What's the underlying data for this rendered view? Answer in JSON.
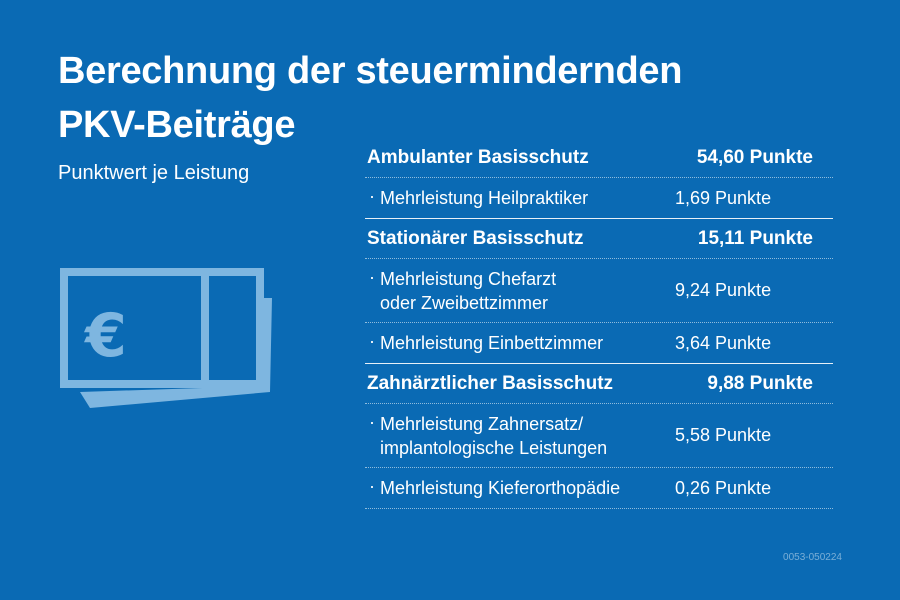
{
  "title": {
    "line1": "Berechnung der steuermindernden",
    "line2": "PKV-Beiträge"
  },
  "subtitle": "Punktwert je Leistung",
  "icon": "euro-banknote-icon",
  "colors": {
    "background": "#0a6ab4",
    "text": "#ffffff",
    "icon": "#7eb6e0"
  },
  "table": [
    {
      "type": "head",
      "label": "Ambulanter Basisschutz",
      "value": "54,60 Punkte"
    },
    {
      "type": "sub",
      "label": [
        "Mehrleistung Heilpraktiker"
      ],
      "value": "1,69 Punkte"
    },
    {
      "type": "head",
      "label": "Stationärer Basisschutz",
      "value": "15,11 Punkte"
    },
    {
      "type": "sub",
      "label": [
        "Mehrleistung Chefarzt",
        "oder Zweibettzimmer"
      ],
      "value": "9,24 Punkte"
    },
    {
      "type": "sub",
      "label": [
        "Mehrleistung Einbettzimmer"
      ],
      "value": "3,64 Punkte"
    },
    {
      "type": "head",
      "label": "Zahnärztlicher Basisschutz",
      "value": "9,88 Punkte"
    },
    {
      "type": "sub",
      "label": [
        "Mehrleistung Zahnersatz/",
        "implantologische Leistungen"
      ],
      "value": "5,58 Punkte"
    },
    {
      "type": "sub",
      "label": [
        "Mehrleistung Kieferorthopädie"
      ],
      "value": "0,26 Punkte"
    }
  ],
  "code": "0053-050224"
}
